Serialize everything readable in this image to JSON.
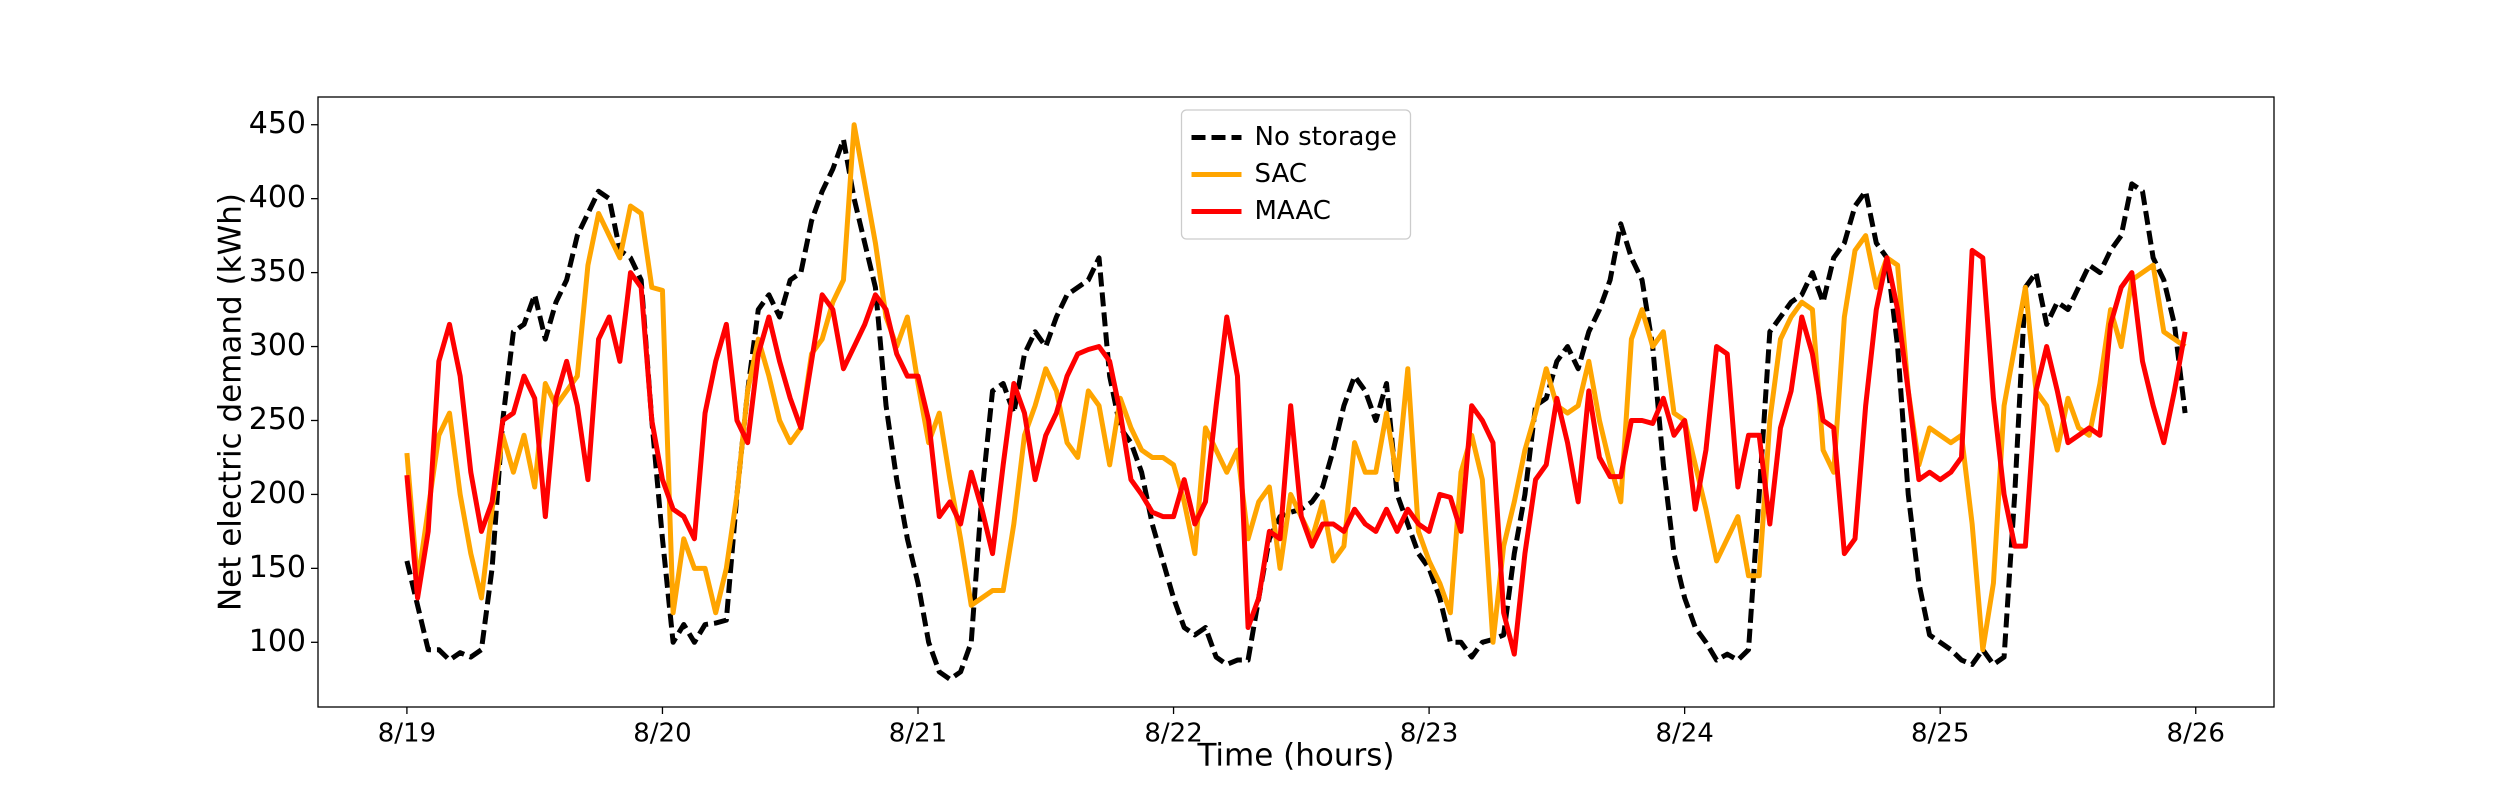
{
  "chart_data": {
    "type": "line",
    "xlabel": "Time (hours)",
    "ylabel": "Net electric demand (kWh)",
    "x": [
      0,
      1,
      2,
      3,
      4,
      5,
      6,
      7,
      8,
      9,
      10,
      11,
      12,
      13,
      14,
      15,
      16,
      17,
      18,
      19,
      20,
      21,
      22,
      23,
      24,
      25,
      26,
      27,
      28,
      29,
      30,
      31,
      32,
      33,
      34,
      35,
      36,
      37,
      38,
      39,
      40,
      41,
      42,
      43,
      44,
      45,
      46,
      47,
      48,
      49,
      50,
      51,
      52,
      53,
      54,
      55,
      56,
      57,
      58,
      59,
      60,
      61,
      62,
      63,
      64,
      65,
      66,
      67,
      68,
      69,
      70,
      71,
      72,
      73,
      74,
      75,
      76,
      77,
      78,
      79,
      80,
      81,
      82,
      83,
      84,
      85,
      86,
      87,
      88,
      89,
      90,
      91,
      92,
      93,
      94,
      95,
      96,
      97,
      98,
      99,
      100,
      101,
      102,
      103,
      104,
      105,
      106,
      107,
      108,
      109,
      110,
      111,
      112,
      113,
      114,
      115,
      116,
      117,
      118,
      119,
      120,
      121,
      122,
      123,
      124,
      125,
      126,
      127,
      128,
      129,
      130,
      131,
      132,
      133,
      134,
      135,
      136,
      137,
      138,
      139,
      140,
      141,
      142,
      143,
      144,
      145,
      146,
      147,
      148,
      149,
      150,
      151,
      152,
      153,
      154,
      155,
      156,
      157,
      158,
      159,
      160,
      161,
      162,
      163,
      164,
      165,
      166,
      167
    ],
    "series": [
      {
        "name": "No storage",
        "color": "#000000",
        "linestyle": "dashed",
        "values": [
          155,
          125,
          95,
          95,
          88,
          93,
          90,
          95,
          150,
          250,
          310,
          315,
          335,
          305,
          330,
          345,
          375,
          390,
          405,
          400,
          365,
          360,
          345,
          250,
          170,
          100,
          112,
          100,
          112,
          113,
          115,
          200,
          270,
          325,
          335,
          320,
          345,
          350,
          385,
          405,
          420,
          440,
          400,
          370,
          340,
          260,
          210,
          170,
          140,
          100,
          80,
          75,
          80,
          100,
          200,
          270,
          275,
          255,
          295,
          310,
          300,
          320,
          335,
          340,
          345,
          360,
          280,
          245,
          235,
          215,
          180,
          155,
          130,
          110,
          105,
          110,
          90,
          85,
          88,
          88,
          130,
          170,
          185,
          188,
          190,
          195,
          205,
          230,
          260,
          280,
          270,
          250,
          275,
          200,
          180,
          160,
          150,
          130,
          100,
          100,
          90,
          100,
          102,
          105,
          160,
          200,
          260,
          265,
          290,
          300,
          285,
          310,
          325,
          345,
          383,
          360,
          345,
          300,
          220,
          160,
          130,
          110,
          100,
          88,
          92,
          88,
          95,
          200,
          310,
          320,
          330,
          335,
          350,
          330,
          360,
          370,
          395,
          405,
          370,
          360,
          300,
          200,
          140,
          105,
          100,
          95,
          88,
          85,
          95,
          85,
          90,
          200,
          340,
          350,
          315,
          330,
          325,
          340,
          355,
          350,
          365,
          375,
          410,
          405,
          360,
          345,
          315,
          255
        ]
      },
      {
        "name": "SAC",
        "color": "#ffa500",
        "linestyle": "solid",
        "values": [
          228,
          140,
          190,
          240,
          255,
          200,
          160,
          130,
          190,
          240,
          215,
          240,
          205,
          275,
          260,
          270,
          280,
          355,
          390,
          375,
          360,
          395,
          390,
          340,
          338,
          120,
          170,
          150,
          150,
          120,
          150,
          200,
          270,
          305,
          280,
          250,
          235,
          245,
          295,
          305,
          330,
          345,
          450,
          410,
          370,
          320,
          300,
          320,
          275,
          235,
          255,
          210,
          170,
          125,
          130,
          135,
          135,
          180,
          240,
          260,
          285,
          270,
          235,
          225,
          270,
          260,
          220,
          265,
          245,
          230,
          225,
          225,
          220,
          195,
          160,
          245,
          230,
          215,
          230,
          170,
          195,
          205,
          150,
          200,
          185,
          170,
          195,
          155,
          165,
          235,
          215,
          215,
          255,
          210,
          285,
          175,
          155,
          140,
          120,
          215,
          240,
          210,
          100,
          165,
          195,
          230,
          255,
          285,
          260,
          255,
          260,
          290,
          250,
          220,
          195,
          305,
          325,
          300,
          310,
          255,
          250,
          220,
          190,
          155,
          170,
          185,
          145,
          145,
          250,
          305,
          320,
          330,
          325,
          230,
          215,
          320,
          365,
          375,
          340,
          360,
          355,
          270,
          220,
          245,
          240,
          235,
          240,
          180,
          95,
          140,
          260,
          300,
          340,
          270,
          260,
          230,
          265,
          245,
          240,
          275,
          325,
          300,
          345,
          350,
          355,
          310,
          305,
          300
        ]
      },
      {
        "name": "MAAC",
        "color": "#ff0000",
        "linestyle": "solid",
        "values": [
          213,
          130,
          175,
          290,
          315,
          280,
          215,
          175,
          195,
          250,
          255,
          280,
          265,
          185,
          265,
          290,
          260,
          210,
          305,
          320,
          290,
          350,
          340,
          250,
          210,
          190,
          185,
          170,
          255,
          290,
          315,
          250,
          235,
          295,
          320,
          290,
          265,
          245,
          290,
          335,
          325,
          285,
          300,
          315,
          335,
          325,
          295,
          280,
          280,
          250,
          185,
          195,
          180,
          215,
          190,
          160,
          220,
          275,
          255,
          210,
          240,
          255,
          280,
          295,
          298,
          300,
          290,
          255,
          210,
          200,
          188,
          185,
          185,
          210,
          180,
          195,
          260,
          320,
          280,
          110,
          130,
          175,
          170,
          260,
          185,
          165,
          180,
          180,
          175,
          190,
          180,
          175,
          190,
          175,
          190,
          180,
          175,
          200,
          198,
          175,
          260,
          250,
          235,
          120,
          92,
          160,
          210,
          220,
          265,
          235,
          195,
          270,
          225,
          212,
          212,
          250,
          250,
          248,
          265,
          240,
          250,
          190,
          230,
          300,
          295,
          205,
          240,
          240,
          180,
          245,
          270,
          320,
          295,
          250,
          245,
          160,
          170,
          260,
          325,
          360,
          325,
          270,
          210,
          215,
          210,
          215,
          225,
          365,
          360,
          265,
          200,
          165,
          165,
          270,
          300,
          270,
          235,
          240,
          245,
          240,
          315,
          340,
          350,
          290,
          260,
          235,
          270,
          310
        ]
      }
    ],
    "xlim": [
      -8.35,
      175.35
    ],
    "xticks": [
      {
        "value": 0,
        "label": "8/19"
      },
      {
        "value": 24,
        "label": "8/20"
      },
      {
        "value": 48,
        "label": "8/21"
      },
      {
        "value": 72,
        "label": "8/22"
      },
      {
        "value": 96,
        "label": "8/23"
      },
      {
        "value": 120,
        "label": "8/24"
      },
      {
        "value": 144,
        "label": "8/25"
      },
      {
        "value": 168,
        "label": "8/26"
      }
    ],
    "ylim": [
      56.25,
      468.75
    ],
    "yticks": [
      100,
      150,
      200,
      250,
      300,
      350,
      400,
      450
    ],
    "grid": false,
    "legend": "upper center"
  }
}
